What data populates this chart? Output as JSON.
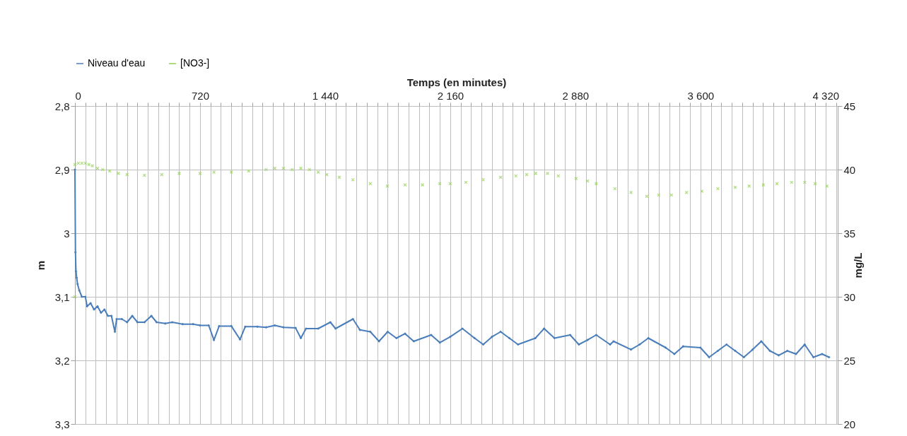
{
  "chart_data": {
    "type": "line",
    "xlabel": "Temps (en minutes)",
    "ylabel": "m",
    "y2label": "mg/L",
    "legend": "top",
    "grid": true,
    "xlim": [
      0,
      4390
    ],
    "xticks": [
      {
        "value": 0,
        "label": "0"
      },
      {
        "value": 60,
        "label": null
      },
      {
        "value": 120,
        "label": null
      },
      {
        "value": 180,
        "label": null
      },
      {
        "value": 240,
        "label": null
      },
      {
        "value": 300,
        "label": null
      },
      {
        "value": 360,
        "label": null
      },
      {
        "value": 420,
        "label": null
      },
      {
        "value": 480,
        "label": null
      },
      {
        "value": 540,
        "label": null
      },
      {
        "value": 600,
        "label": null
      },
      {
        "value": 660,
        "label": null
      },
      {
        "value": 720,
        "label": "720"
      },
      {
        "value": 780,
        "label": null
      },
      {
        "value": 840,
        "label": null
      },
      {
        "value": 900,
        "label": null
      },
      {
        "value": 960,
        "label": null
      },
      {
        "value": 1020,
        "label": null
      },
      {
        "value": 1080,
        "label": null
      },
      {
        "value": 1140,
        "label": null
      },
      {
        "value": 1200,
        "label": null
      },
      {
        "value": 1260,
        "label": null
      },
      {
        "value": 1320,
        "label": null
      },
      {
        "value": 1380,
        "label": null
      },
      {
        "value": 1440,
        "label": "1 440"
      },
      {
        "value": 1500,
        "label": null
      },
      {
        "value": 1560,
        "label": null
      },
      {
        "value": 1620,
        "label": null
      },
      {
        "value": 1680,
        "label": null
      },
      {
        "value": 1740,
        "label": null
      },
      {
        "value": 1800,
        "label": null
      },
      {
        "value": 1860,
        "label": null
      },
      {
        "value": 1920,
        "label": null
      },
      {
        "value": 1980,
        "label": null
      },
      {
        "value": 2040,
        "label": null
      },
      {
        "value": 2100,
        "label": null
      },
      {
        "value": 2160,
        "label": "2 160"
      },
      {
        "value": 2220,
        "label": null
      },
      {
        "value": 2280,
        "label": null
      },
      {
        "value": 2340,
        "label": null
      },
      {
        "value": 2400,
        "label": null
      },
      {
        "value": 2460,
        "label": null
      },
      {
        "value": 2520,
        "label": null
      },
      {
        "value": 2580,
        "label": null
      },
      {
        "value": 2640,
        "label": null
      },
      {
        "value": 2700,
        "label": null
      },
      {
        "value": 2760,
        "label": null
      },
      {
        "value": 2820,
        "label": null
      },
      {
        "value": 2880,
        "label": "2 880"
      },
      {
        "value": 2940,
        "label": null
      },
      {
        "value": 3000,
        "label": null
      },
      {
        "value": 3060,
        "label": null
      },
      {
        "value": 3120,
        "label": null
      },
      {
        "value": 3180,
        "label": null
      },
      {
        "value": 3240,
        "label": null
      },
      {
        "value": 3300,
        "label": null
      },
      {
        "value": 3360,
        "label": null
      },
      {
        "value": 3420,
        "label": null
      },
      {
        "value": 3480,
        "label": null
      },
      {
        "value": 3540,
        "label": null
      },
      {
        "value": 3600,
        "label": "3 600"
      },
      {
        "value": 3660,
        "label": null
      },
      {
        "value": 3720,
        "label": null
      },
      {
        "value": 3780,
        "label": null
      },
      {
        "value": 3840,
        "label": null
      },
      {
        "value": 3900,
        "label": null
      },
      {
        "value": 3960,
        "label": null
      },
      {
        "value": 4020,
        "label": null
      },
      {
        "value": 4080,
        "label": null
      },
      {
        "value": 4140,
        "label": null
      },
      {
        "value": 4200,
        "label": null
      },
      {
        "value": 4260,
        "label": null
      },
      {
        "value": 4320,
        "label": "4 320"
      },
      {
        "value": 4380,
        "label": null
      }
    ],
    "ylim": [
      3.3,
      2.8
    ],
    "yticks": [
      {
        "value": 2.8,
        "label": "2,8"
      },
      {
        "value": 2.9,
        "label": "2,9"
      },
      {
        "value": 3.0,
        "label": "3"
      },
      {
        "value": 3.1,
        "label": "3,1"
      },
      {
        "value": 3.2,
        "label": "3,2"
      },
      {
        "value": 3.3,
        "label": "3,3"
      }
    ],
    "y2lim": [
      20,
      45
    ],
    "y2ticks": [
      20,
      25,
      30,
      35,
      40,
      45
    ],
    "series": [
      {
        "name": "Niveau d'eau",
        "type": "line",
        "color": "#4a7ebb",
        "marker": "diamond",
        "line_style": "solid",
        "x": [
          0,
          3,
          6,
          10,
          15,
          25,
          40,
          60,
          70,
          90,
          110,
          130,
          150,
          170,
          190,
          210,
          230,
          240,
          270,
          300,
          330,
          360,
          400,
          440,
          470,
          520,
          560,
          620,
          680,
          720,
          770,
          800,
          830,
          900,
          950,
          980,
          1050,
          1100,
          1150,
          1200,
          1270,
          1300,
          1330,
          1400,
          1470,
          1500,
          1600,
          1640,
          1700,
          1750,
          1800,
          1850,
          1900,
          1950,
          2050,
          2100,
          2160,
          2230,
          2300,
          2350,
          2400,
          2450,
          2500,
          2550,
          2650,
          2700,
          2760,
          2850,
          2900,
          2950,
          3000,
          3080,
          3100,
          3200,
          3250,
          3300,
          3400,
          3450,
          3500,
          3600,
          3650,
          3700,
          3750,
          3800,
          3850,
          3900,
          3950,
          4000,
          4050,
          4100,
          4150,
          4200,
          4250,
          4300,
          4340
        ],
        "values": [
          2.9,
          3.03,
          3.06,
          3.07,
          3.08,
          3.09,
          3.1,
          3.1,
          3.115,
          3.11,
          3.12,
          3.115,
          3.125,
          3.12,
          3.13,
          3.13,
          3.155,
          3.135,
          3.135,
          3.14,
          3.13,
          3.14,
          3.14,
          3.13,
          3.14,
          3.142,
          3.14,
          3.143,
          3.143,
          3.145,
          3.145,
          3.168,
          3.146,
          3.146,
          3.167,
          3.147,
          3.147,
          3.148,
          3.145,
          3.148,
          3.149,
          3.165,
          3.15,
          3.15,
          3.14,
          3.15,
          3.135,
          3.152,
          3.155,
          3.17,
          3.155,
          3.165,
          3.158,
          3.17,
          3.16,
          3.172,
          3.163,
          3.15,
          3.165,
          3.175,
          3.163,
          3.155,
          3.165,
          3.175,
          3.165,
          3.15,
          3.165,
          3.16,
          3.175,
          3.168,
          3.16,
          3.175,
          3.17,
          3.183,
          3.175,
          3.165,
          3.18,
          3.19,
          3.178,
          3.18,
          3.195,
          3.185,
          3.175,
          3.185,
          3.195,
          3.183,
          3.17,
          3.185,
          3.192,
          3.185,
          3.19,
          3.175,
          3.195,
          3.19,
          3.195
        ]
      },
      {
        "name": "[NO3-]",
        "type": "scatter",
        "axis": "y2",
        "color": "#92d050",
        "marker": "cross",
        "x": [
          0,
          0,
          20,
          40,
          60,
          80,
          100,
          130,
          160,
          200,
          250,
          300,
          400,
          500,
          600,
          720,
          800,
          900,
          1000,
          1100,
          1150,
          1200,
          1250,
          1300,
          1350,
          1400,
          1450,
          1521,
          1600,
          1700,
          1798,
          1900,
          2000,
          2100,
          2160,
          2250,
          2350,
          2450,
          2538,
          2600,
          2652,
          2720,
          2782,
          2884,
          2950,
          3000,
          3108,
          3200,
          3291,
          3360,
          3433,
          3520,
          3608,
          3700,
          3800,
          3880,
          3962,
          4040,
          4125,
          4200,
          4260,
          4328
        ],
        "values": [
          30,
          40.4,
          40.5,
          40.5,
          40.5,
          40.4,
          40.3,
          40.1,
          40.0,
          39.9,
          39.7,
          39.6,
          39.55,
          39.6,
          39.7,
          39.7,
          39.8,
          39.8,
          39.9,
          40.0,
          40.1,
          40.1,
          40.0,
          40.1,
          40.0,
          39.8,
          39.6,
          39.4,
          39.2,
          38.9,
          38.7,
          38.8,
          38.8,
          38.9,
          38.9,
          39.0,
          39.2,
          39.4,
          39.5,
          39.6,
          39.7,
          39.7,
          39.5,
          39.3,
          39.1,
          38.9,
          38.5,
          38.2,
          37.9,
          38.0,
          38.0,
          38.2,
          38.3,
          38.5,
          38.6,
          38.7,
          38.8,
          38.9,
          39.0,
          39.0,
          38.9,
          38.7
        ]
      }
    ]
  }
}
